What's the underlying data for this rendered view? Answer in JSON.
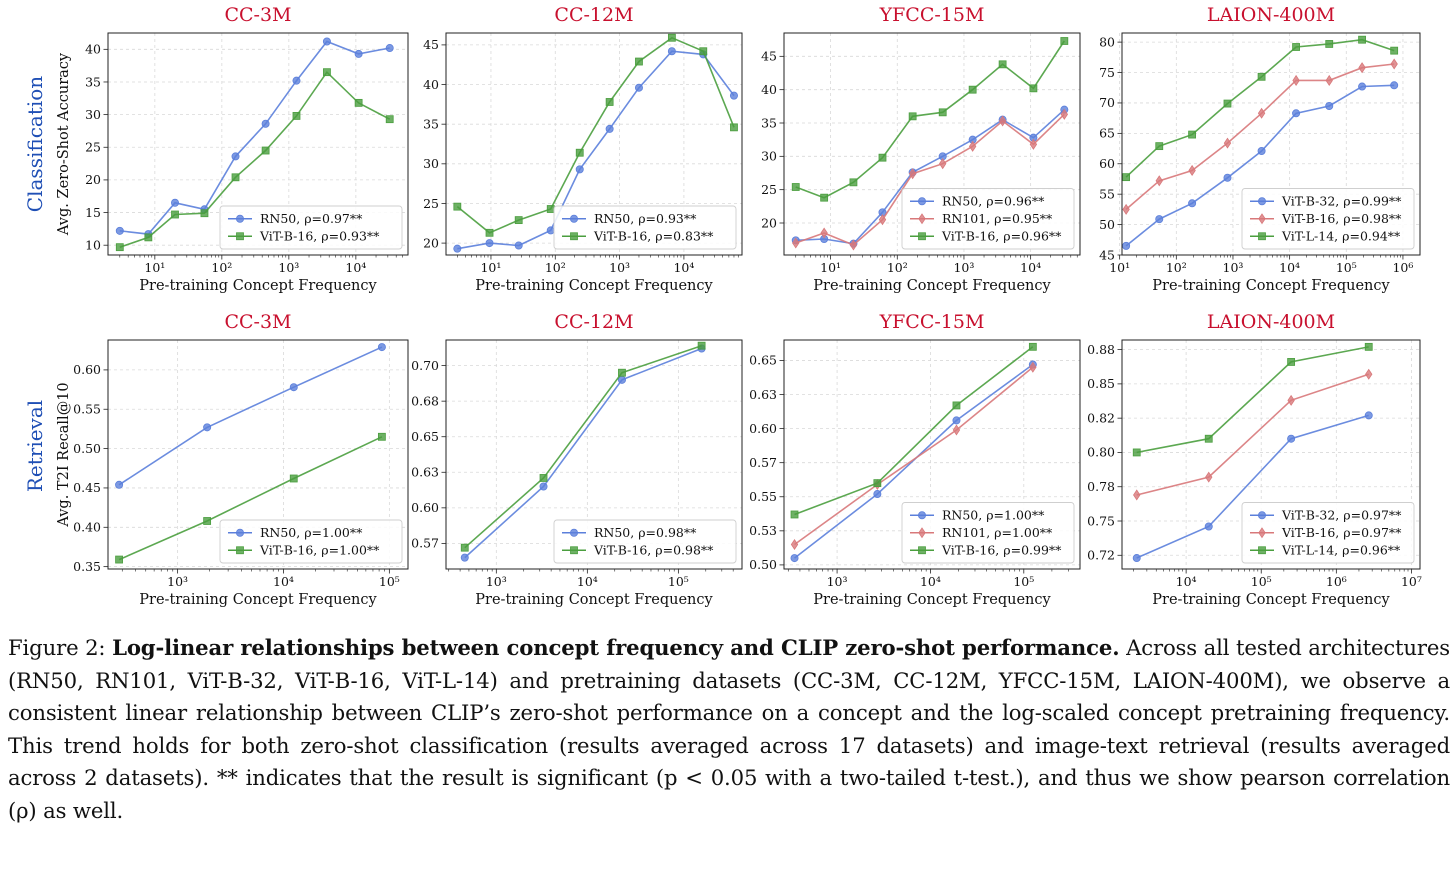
{
  "row_labels": [
    "Classification",
    "Retrieval"
  ],
  "ylabels": {
    "classification": "Avg. Zero-Shot Accuracy",
    "retrieval": "Avg. T2I Recall@10"
  },
  "colors": {
    "RN50": "#5b7fdb",
    "RN101": "#d8787a",
    "ViT-B-16": "#4a9e3e",
    "ViT-B-32": "#5b7fdb",
    "ViT-L-14": "#4a9e3e",
    "title": "#c8102e",
    "row_label": "#1f4fb5"
  },
  "chart_data": [
    {
      "type": "line",
      "title": "CC-3M",
      "xlabel": "Pre-training Concept Frequency",
      "ylabel": "Avg. Zero-Shot Accuracy",
      "xscale": "log",
      "xlim": [
        2,
        60000
      ],
      "ylim": [
        8.5,
        42.5
      ],
      "xticks": [
        {
          "v": 10,
          "l": "10¹"
        },
        {
          "v": 100,
          "l": "10²"
        },
        {
          "v": 1000,
          "l": "10³"
        },
        {
          "v": 10000,
          "l": "10⁴"
        }
      ],
      "yticks": [
        10,
        15,
        20,
        25,
        30,
        35,
        40
      ],
      "legend": "lower-right",
      "grid": true,
      "series": [
        {
          "name": "RN50, ρ=0.97**",
          "color": "#5b7fdb",
          "marker": "circle",
          "x": [
            3,
            8,
            20,
            55,
            160,
            450,
            1300,
            3700,
            11000,
            32000
          ],
          "y": [
            12.2,
            11.7,
            16.5,
            15.5,
            23.6,
            28.6,
            35.2,
            41.2,
            39.3,
            40.2
          ]
        },
        {
          "name": "ViT-B-16, ρ=0.93**",
          "color": "#4a9e3e",
          "marker": "square",
          "x": [
            3,
            8,
            20,
            55,
            160,
            450,
            1300,
            3700,
            11000,
            32000
          ],
          "y": [
            9.7,
            11.2,
            14.7,
            14.9,
            20.4,
            24.5,
            29.8,
            36.5,
            31.8,
            29.3
          ]
        }
      ]
    },
    {
      "type": "line",
      "title": "CC-12M",
      "xlabel": "Pre-training Concept Frequency",
      "ylabel": "",
      "xscale": "log",
      "xlim": [
        2,
        80000
      ],
      "ylim": [
        18.5,
        46.5
      ],
      "xticks": [
        {
          "v": 10,
          "l": "10¹"
        },
        {
          "v": 100,
          "l": "10²"
        },
        {
          "v": 1000,
          "l": "10³"
        },
        {
          "v": 10000,
          "l": "10⁴"
        }
      ],
      "yticks": [
        20,
        25,
        30,
        35,
        40,
        45
      ],
      "legend": "lower-right",
      "grid": true,
      "series": [
        {
          "name": "RN50, ρ=0.93**",
          "color": "#5b7fdb",
          "marker": "circle",
          "x": [
            3,
            9.5,
            27,
            85,
            240,
            700,
            2000,
            6500,
            20000,
            60000
          ],
          "y": [
            19.3,
            20.0,
            19.7,
            21.6,
            29.3,
            34.4,
            39.6,
            44.2,
            43.8,
            38.6
          ]
        },
        {
          "name": "ViT-B-16, ρ=0.83**",
          "color": "#4a9e3e",
          "marker": "square",
          "x": [
            3,
            9.5,
            27,
            85,
            240,
            700,
            2000,
            6500,
            20000,
            60000
          ],
          "y": [
            24.6,
            21.3,
            22.9,
            24.3,
            31.4,
            37.8,
            42.9,
            45.9,
            44.2,
            34.6
          ]
        }
      ]
    },
    {
      "type": "line",
      "title": "YFCC-15M",
      "xlabel": "Pre-training Concept Frequency",
      "ylabel": "",
      "xscale": "log",
      "xlim": [
        2,
        55000
      ],
      "ylim": [
        15.2,
        48.5
      ],
      "xticks": [
        {
          "v": 10,
          "l": "10¹"
        },
        {
          "v": 100,
          "l": "10²"
        },
        {
          "v": 1000,
          "l": "10³"
        },
        {
          "v": 10000,
          "l": "10⁴"
        }
      ],
      "yticks": [
        20,
        25,
        30,
        35,
        40,
        45
      ],
      "legend": "lower-right",
      "grid": true,
      "series": [
        {
          "name": "RN50, ρ=0.96**",
          "color": "#5b7fdb",
          "marker": "circle",
          "x": [
            3,
            8,
            22,
            60,
            170,
            480,
            1350,
            3800,
            11000,
            32000
          ],
          "y": [
            17.4,
            17.6,
            16.9,
            21.6,
            27.6,
            30.0,
            32.5,
            35.5,
            32.8,
            37.0
          ]
        },
        {
          "name": "RN101, ρ=0.95**",
          "color": "#d8787a",
          "marker": "diamond",
          "x": [
            3,
            8,
            22,
            60,
            170,
            480,
            1350,
            3800,
            11000,
            32000
          ],
          "y": [
            17.0,
            18.5,
            16.7,
            20.5,
            27.4,
            28.9,
            31.5,
            35.3,
            31.8,
            36.3
          ]
        },
        {
          "name": "ViT-B-16, ρ=0.96**",
          "color": "#4a9e3e",
          "marker": "square",
          "x": [
            3,
            8,
            22,
            60,
            170,
            480,
            1350,
            3800,
            11000,
            32000
          ],
          "y": [
            25.4,
            23.8,
            26.1,
            29.8,
            36.0,
            36.6,
            40.0,
            43.8,
            40.2,
            47.3
          ]
        }
      ]
    },
    {
      "type": "line",
      "title": "LAION-400M",
      "xlabel": "Pre-training Concept Frequency",
      "ylabel": "",
      "xscale": "log",
      "xlim": [
        11,
        2000000
      ],
      "ylim": [
        45,
        81.5
      ],
      "xticks": [
        {
          "v": 10,
          "l": "10¹"
        },
        {
          "v": 100,
          "l": "10²"
        },
        {
          "v": 1000,
          "l": "10³"
        },
        {
          "v": 10000,
          "l": "10⁴"
        },
        {
          "v": 100000,
          "l": "10⁵"
        },
        {
          "v": 1000000,
          "l": "10⁶"
        }
      ],
      "yticks": [
        45,
        50,
        55,
        60,
        65,
        70,
        75,
        80
      ],
      "legend": "lower-right",
      "grid": true,
      "series": [
        {
          "name": "ViT-B-32, ρ=0.99**",
          "color": "#5b7fdb",
          "marker": "circle",
          "x": [
            13,
            50,
            190,
            800,
            3200,
            13000,
            50000,
            190000,
            700000
          ],
          "y": [
            46.5,
            50.9,
            53.5,
            57.7,
            62.1,
            68.3,
            69.5,
            72.7,
            72.9
          ]
        },
        {
          "name": "ViT-B-16, ρ=0.98**",
          "color": "#d8787a",
          "marker": "diamond",
          "x": [
            13,
            50,
            190,
            800,
            3200,
            13000,
            50000,
            190000,
            700000
          ],
          "y": [
            52.5,
            57.2,
            58.9,
            63.4,
            68.3,
            73.7,
            73.7,
            75.8,
            76.4
          ]
        },
        {
          "name": "ViT-L-14, ρ=0.94**",
          "color": "#4a9e3e",
          "marker": "square",
          "x": [
            13,
            50,
            190,
            800,
            3200,
            13000,
            50000,
            190000,
            700000
          ],
          "y": [
            57.8,
            62.9,
            64.8,
            69.9,
            74.3,
            79.2,
            79.7,
            80.4,
            78.6
          ]
        }
      ]
    },
    {
      "type": "line",
      "title": "CC-3M",
      "xlabel": "Pre-training Concept Frequency",
      "ylabel": "Avg. T2I Recall@10",
      "xscale": "log",
      "xlim": [
        220,
        150000
      ],
      "ylim": [
        0.347,
        0.638
      ],
      "xticks": [
        {
          "v": 1000,
          "l": "10³"
        },
        {
          "v": 10000,
          "l": "10⁴"
        },
        {
          "v": 100000,
          "l": "10⁵"
        }
      ],
      "yticks": [
        0.35,
        0.4,
        0.45,
        0.5,
        0.55,
        0.6
      ],
      "ydecimals": 2,
      "legend": "lower-right",
      "grid": true,
      "series": [
        {
          "name": "RN50, ρ=1.00**",
          "color": "#5b7fdb",
          "marker": "circle",
          "x": [
            280,
            1900,
            12500,
            85000
          ],
          "y": [
            0.454,
            0.527,
            0.578,
            0.629
          ]
        },
        {
          "name": "ViT-B-16, ρ=1.00**",
          "color": "#4a9e3e",
          "marker": "square",
          "x": [
            280,
            1900,
            12500,
            85000
          ],
          "y": [
            0.359,
            0.408,
            0.462,
            0.515
          ]
        }
      ]
    },
    {
      "type": "line",
      "title": "CC-12M",
      "xlabel": "Pre-training Concept Frequency",
      "ylabel": "",
      "xscale": "log",
      "xlim": [
        280,
        500000
      ],
      "ylim": [
        0.557,
        0.718
      ],
      "xticks": [
        {
          "v": 1000,
          "l": "10³"
        },
        {
          "v": 10000,
          "l": "10⁴"
        },
        {
          "v": 100000,
          "l": "10⁵"
        }
      ],
      "yticks": [
        0.575,
        0.6,
        0.625,
        0.65,
        0.675,
        0.7
      ],
      "ydecimals": 2,
      "legend": "lower-right",
      "grid": true,
      "series": [
        {
          "name": "RN50, ρ=0.98**",
          "color": "#5b7fdb",
          "marker": "circle",
          "x": [
            450,
            3300,
            24000,
            180000
          ],
          "y": [
            0.565,
            0.615,
            0.69,
            0.712
          ]
        },
        {
          "name": "ViT-B-16, ρ=0.98**",
          "color": "#4a9e3e",
          "marker": "square",
          "x": [
            450,
            3300,
            24000,
            180000
          ],
          "y": [
            0.572,
            0.621,
            0.695,
            0.714
          ]
        }
      ]
    },
    {
      "type": "line",
      "title": "YFCC-15M",
      "xlabel": "Pre-training Concept Frequency",
      "ylabel": "",
      "xscale": "log",
      "xlim": [
        270,
        400000
      ],
      "ylim": [
        0.497,
        0.665
      ],
      "xticks": [
        {
          "v": 1000,
          "l": "10³"
        },
        {
          "v": 10000,
          "l": "10⁴"
        },
        {
          "v": 100000,
          "l": "10⁵"
        }
      ],
      "yticks": [
        0.5,
        0.525,
        0.55,
        0.575,
        0.6,
        0.625,
        0.65
      ],
      "ydecimals": 2,
      "legend": "lower-right",
      "grid": true,
      "series": [
        {
          "name": "RN50, ρ=1.00**",
          "color": "#5b7fdb",
          "marker": "circle",
          "x": [
            350,
            2700,
            19000,
            125000
          ],
          "y": [
            0.505,
            0.552,
            0.606,
            0.647
          ]
        },
        {
          "name": "RN101, ρ=1.00**",
          "color": "#d8787a",
          "marker": "diamond",
          "x": [
            350,
            2700,
            19000,
            125000
          ],
          "y": [
            0.515,
            0.559,
            0.599,
            0.645
          ]
        },
        {
          "name": "ViT-B-16, ρ=0.99**",
          "color": "#4a9e3e",
          "marker": "square",
          "x": [
            350,
            2700,
            19000,
            125000
          ],
          "y": [
            0.537,
            0.56,
            0.617,
            0.66
          ]
        }
      ]
    },
    {
      "type": "line",
      "title": "LAION-400M",
      "xlabel": "Pre-training Concept Frequency",
      "ylabel": "",
      "xscale": "log",
      "xlim": [
        1400,
        13000000
      ],
      "ylim": [
        0.715,
        0.882
      ],
      "xticks": [
        {
          "v": 10000,
          "l": "10⁴"
        },
        {
          "v": 100000,
          "l": "10⁵"
        },
        {
          "v": 1000000,
          "l": "10⁶"
        },
        {
          "v": 10000000,
          "l": "10⁷"
        }
      ],
      "yticks": [
        0.725,
        0.75,
        0.775,
        0.8,
        0.825,
        0.85,
        0.875
      ],
      "ydecimals": 2,
      "legend": "lower-right",
      "grid": true,
      "series": [
        {
          "name": "ViT-B-32, ρ=0.97**",
          "color": "#5b7fdb",
          "marker": "circle",
          "x": [
            2200,
            20000,
            250000,
            2700000
          ],
          "y": [
            0.723,
            0.746,
            0.81,
            0.827
          ]
        },
        {
          "name": "ViT-B-16, ρ=0.97**",
          "color": "#d8787a",
          "marker": "diamond",
          "x": [
            2200,
            20000,
            250000,
            2700000
          ],
          "y": [
            0.769,
            0.782,
            0.838,
            0.857
          ]
        },
        {
          "name": "ViT-L-14, ρ=0.96**",
          "color": "#4a9e3e",
          "marker": "square",
          "x": [
            2200,
            20000,
            250000,
            2700000
          ],
          "y": [
            0.8,
            0.81,
            0.866,
            0.877
          ]
        }
      ]
    }
  ],
  "caption": {
    "label": "Figure 2:",
    "bold": "Log-linear relationships between concept frequency and CLIP zero-shot performance.",
    "text": "Across all tested architectures (RN50, RN101, ViT-B-32, ViT-B-16, ViT-L-14) and pretraining datasets (CC-3M, CC-12M, YFCC-15M, LAION-400M), we observe a consistent linear relationship between CLIP’s zero-shot performance on a concept and the log-scaled concept pretraining frequency. This trend holds for both zero-shot classification (results averaged across 17 datasets) and image-text retrieval (results averaged across 2 datasets). ** indicates that the result is significant (p < 0.05 with a two-tailed t-test.), and thus we show pearson correlation (ρ) as well."
  }
}
